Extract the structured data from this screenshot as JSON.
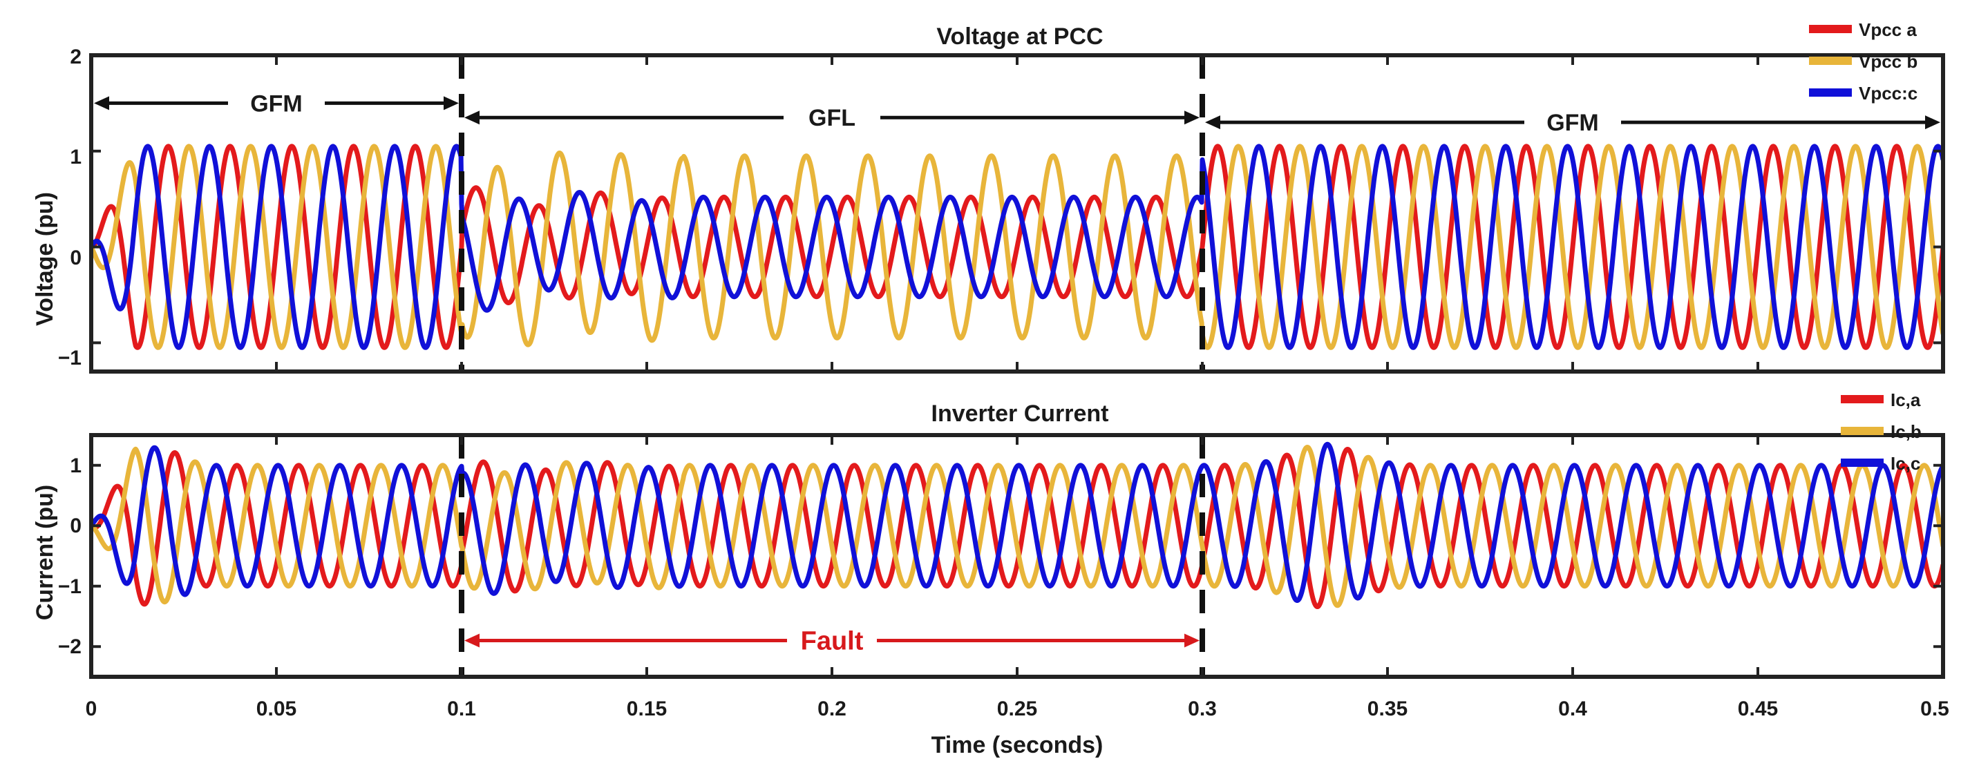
{
  "chart_data": [
    {
      "type": "line",
      "id": "top",
      "title": "Voltage at PCC",
      "xlabel": "",
      "ylabel": "Voltage (pu)",
      "xlim": [
        0,
        0.5
      ],
      "ylim": [
        -1.3,
        2
      ],
      "yticks": [
        -1,
        0,
        1,
        2
      ],
      "yticklabels": [
        "−1",
        "0",
        "1",
        "2"
      ],
      "xticks": [
        0,
        0.05,
        0.1,
        0.15,
        0.2,
        0.25,
        0.3,
        0.35,
        0.4,
        0.45,
        0.5
      ],
      "grid": false,
      "legend_position": "top-right",
      "series": [
        {
          "name": "Vpcc a",
          "color": "#e31a1c",
          "phase_deg": 0,
          "amplitude_segments": [
            {
              "x": [
                0,
                0.1
              ],
              "amp": 1.05
            },
            {
              "x": [
                0.1,
                0.3
              ],
              "amp": 0.52
            },
            {
              "x": [
                0.3,
                0.5
              ],
              "amp": 1.05
            }
          ]
        },
        {
          "name": "Vpcc b",
          "color": "#e8b53a",
          "phase_deg": -120,
          "amplitude_segments": [
            {
              "x": [
                0,
                0.1
              ],
              "amp": 1.05
            },
            {
              "x": [
                0.1,
                0.3
              ],
              "amp": 0.95
            },
            {
              "x": [
                0.3,
                0.5
              ],
              "amp": 1.05
            }
          ]
        },
        {
          "name": "Vpcc:c",
          "color": "#1010d8",
          "phase_deg": 120,
          "amplitude_segments": [
            {
              "x": [
                0,
                0.1
              ],
              "amp": 1.05
            },
            {
              "x": [
                0.1,
                0.3
              ],
              "amp": 0.52
            },
            {
              "x": [
                0.3,
                0.5
              ],
              "amp": 1.05
            }
          ]
        }
      ],
      "frequency_hz": 60,
      "mode_annotations": [
        {
          "label": "GFM",
          "x_start": 0,
          "x_end": 0.1,
          "y": 1.5
        },
        {
          "label": "GFL",
          "x_start": 0.1,
          "x_end": 0.3,
          "y": 1.35
        },
        {
          "label": "GFM",
          "x_start": 0.3,
          "x_end": 0.5,
          "y": 1.3
        }
      ],
      "vertical_markers": [
        0.1,
        0.3
      ]
    },
    {
      "type": "line",
      "id": "bottom",
      "title": "Inverter Current",
      "xlabel": "Time (seconds)",
      "ylabel": "Current (pu)",
      "xlim": [
        0,
        0.5
      ],
      "ylim": [
        -2.5,
        1.5
      ],
      "yticks": [
        -2,
        -1,
        0,
        1
      ],
      "yticklabels": [
        "−2",
        "−1",
        "0",
        "1"
      ],
      "xticks": [
        0,
        0.05,
        0.1,
        0.15,
        0.2,
        0.25,
        0.3,
        0.35,
        0.4,
        0.45,
        0.5
      ],
      "xticklabels": [
        "0",
        "0.05",
        "0.1",
        "0.15",
        "0.2",
        "0.25",
        "0.3",
        "0.35",
        "0.4",
        "0.45",
        "0.5"
      ],
      "grid": false,
      "legend_position": "top-right",
      "series": [
        {
          "name": "Ic,a",
          "color": "#e31a1c",
          "phase_deg": -40,
          "amplitude_segments": [
            {
              "x": [
                0,
                0.1
              ],
              "amp": 1.0
            },
            {
              "x": [
                0.1,
                0.3
              ],
              "amp": 1.0
            },
            {
              "x": [
                0.3,
                0.5
              ],
              "amp": 1.0
            }
          ]
        },
        {
          "name": "Ic,b",
          "color": "#e8b53a",
          "phase_deg": -160,
          "amplitude_segments": [
            {
              "x": [
                0,
                0.1
              ],
              "amp": 1.0
            },
            {
              "x": [
                0.1,
                0.3
              ],
              "amp": 1.0
            },
            {
              "x": [
                0.3,
                0.5
              ],
              "amp": 1.0
            }
          ]
        },
        {
          "name": "Ic,c",
          "color": "#1010d8",
          "phase_deg": 80,
          "amplitude_segments": [
            {
              "x": [
                0,
                0.1
              ],
              "amp": 1.0
            },
            {
              "x": [
                0.1,
                0.3
              ],
              "amp": 1.0
            },
            {
              "x": [
                0.3,
                0.5
              ],
              "amp": 1.0
            }
          ]
        }
      ],
      "frequency_hz": 60,
      "fault_annotation": {
        "label": "Fault",
        "x_start": 0.1,
        "x_end": 0.3,
        "y": -1.9,
        "color": "#d7191c"
      },
      "vertical_markers": [
        0.1,
        0.3
      ]
    }
  ]
}
